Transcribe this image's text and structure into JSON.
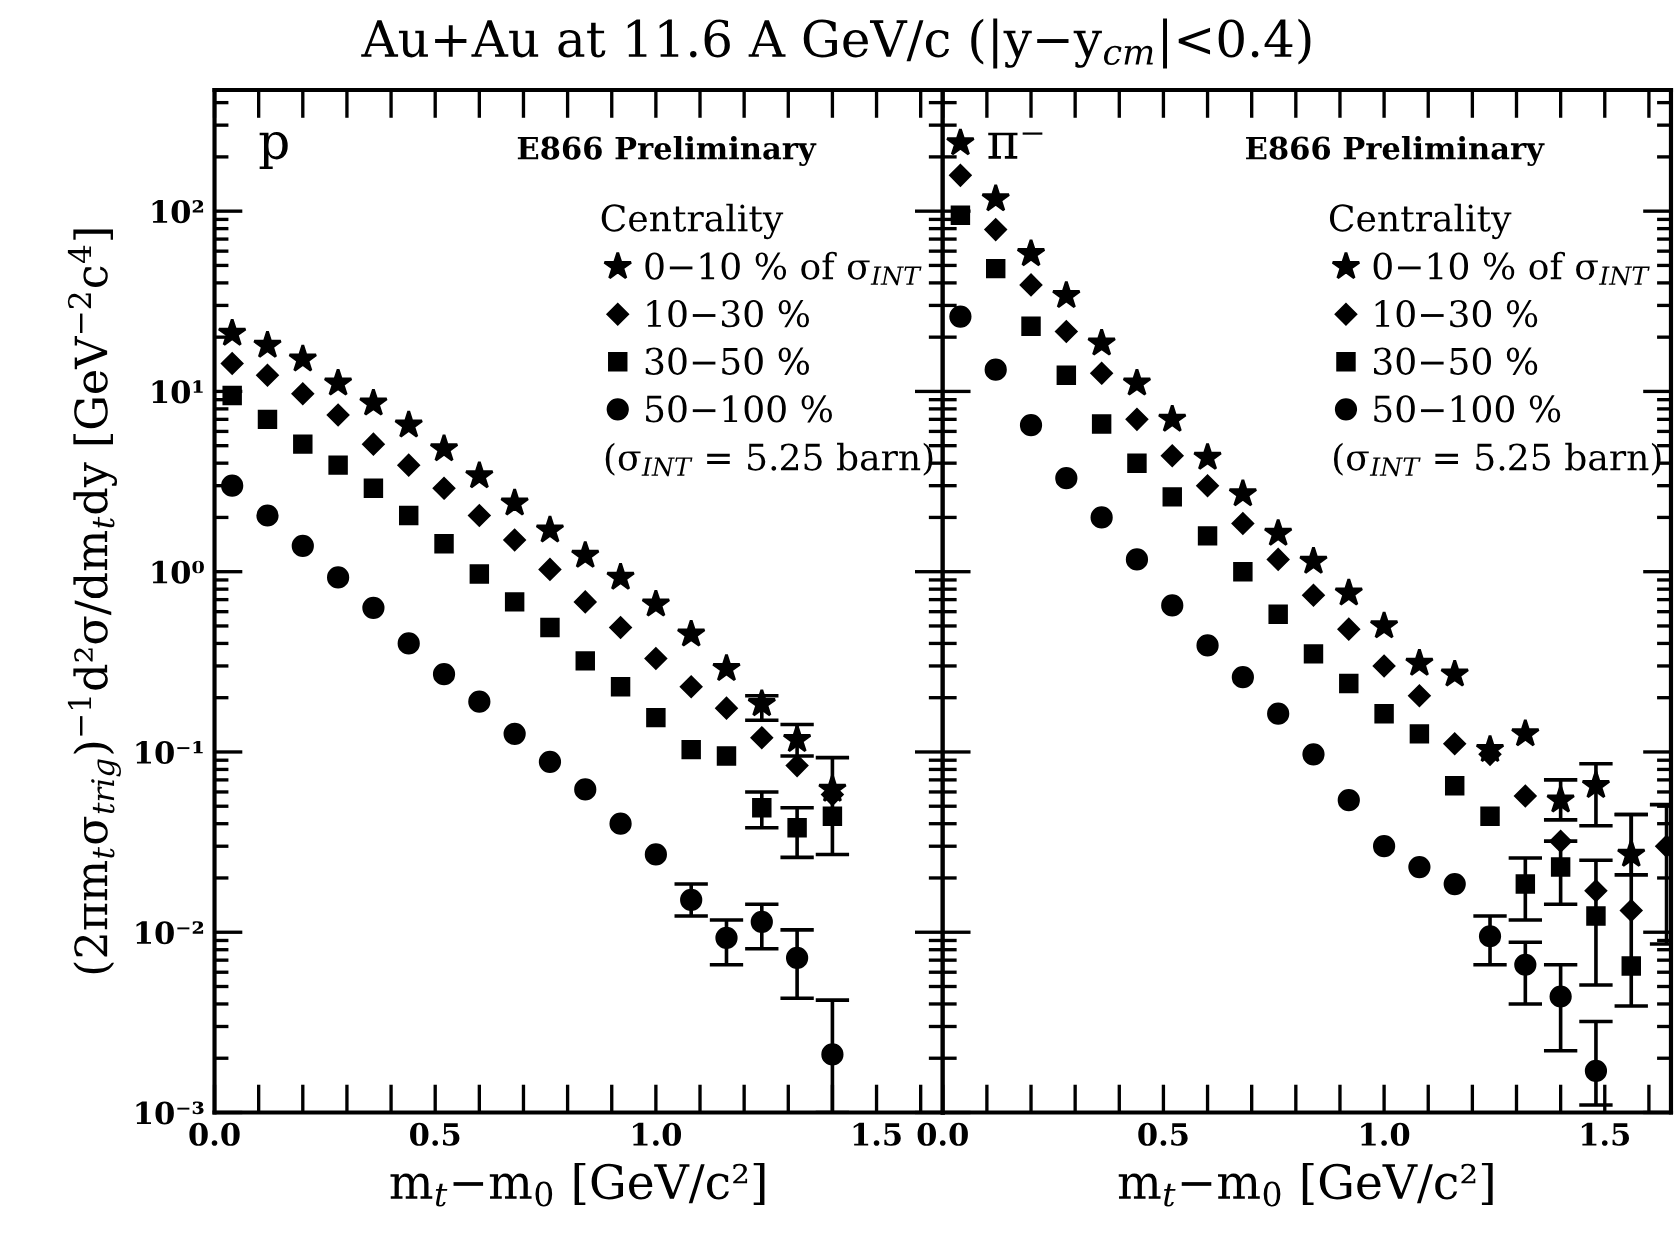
{
  "chart_data": [
    {
      "type": "scatter",
      "title": "Au+Au at 11.6 A GeV/c (|y−y$_{cm}$|<0.4)",
      "xlabel": "m$_{t}$−m$_{0}$ [GeV/c²]",
      "ylabel": "(2πm$_{t}$σ$_{trig}$)$^{−1}$d²σ/dm$_{t}$dy [GeV$^{−2}$c$^{4}$]",
      "legend_title": "Centrality",
      "legend": "top right",
      "log": "y",
      "annotations": [
        "p",
        "E866 Preliminary",
        "(σ$_{INT}$ = 5.25 barn)"
      ],
      "xlim": [
        0,
        1.65
      ],
      "xticks": [
        {
          "value": 0,
          "label": "0.0"
        },
        {
          "value": 0.1,
          "label": null
        },
        {
          "value": 0.2,
          "label": null
        },
        {
          "value": 0.3,
          "label": null
        },
        {
          "value": 0.4,
          "label": null
        },
        {
          "value": 0.5,
          "label": "0.5"
        },
        {
          "value": 0.6,
          "label": null
        },
        {
          "value": 0.7,
          "label": null
        },
        {
          "value": 0.8,
          "label": null
        },
        {
          "value": 0.9,
          "label": null
        },
        {
          "value": 1,
          "label": "1.0"
        },
        {
          "value": 1.1,
          "label": null
        },
        {
          "value": 1.2,
          "label": null
        },
        {
          "value": 1.3,
          "label": null
        },
        {
          "value": 1.4,
          "label": null
        },
        {
          "value": 1.5,
          "label": "1.5"
        },
        {
          "value": 1.6,
          "label": null
        }
      ],
      "ylim": [
        0.001,
        470
      ],
      "yticks": [
        {
          "value": 0.001,
          "label": "10⁻³"
        },
        {
          "value": 0.01,
          "label": "10⁻²"
        },
        {
          "value": 0.1,
          "label": "10⁻¹"
        },
        {
          "value": 1,
          "label": "10⁰"
        },
        {
          "value": 10,
          "label": "10¹"
        },
        {
          "value": 100,
          "label": "10²"
        }
      ],
      "series": [
        {
          "name": "0−10 % of σ$_{INT}$",
          "color": "#000000",
          "marker": "star",
          "x": [
            0.04,
            0.12,
            0.2,
            0.28,
            0.36,
            0.44,
            0.52,
            0.6,
            0.68,
            0.76,
            0.84,
            0.92,
            1.0,
            1.08,
            1.16,
            1.24,
            1.32,
            1.4
          ],
          "values": [
            21,
            18,
            15.1,
            11.1,
            8.6,
            6.5,
            4.8,
            3.4,
            2.4,
            1.7,
            1.23,
            0.93,
            0.66,
            0.45,
            0.29,
            0.185,
            0.117,
            0.062
          ],
          "errors": [
            null,
            null,
            null,
            null,
            null,
            null,
            null,
            null,
            null,
            null,
            null,
            null,
            null,
            null,
            null,
            [
              0.15,
              0.205
            ],
            [
              0.095,
              0.142
            ],
            null
          ]
        },
        {
          "name": "10−30 %",
          "color": "#000000",
          "marker": "diamond",
          "x": [
            0.04,
            0.12,
            0.2,
            0.28,
            0.36,
            0.44,
            0.52,
            0.6,
            0.68,
            0.76,
            0.84,
            0.92,
            1.0,
            1.08,
            1.16,
            1.24,
            1.32,
            1.4
          ],
          "values": [
            14.3,
            12.3,
            9.7,
            7.4,
            5.1,
            3.9,
            2.9,
            2.05,
            1.5,
            1.03,
            0.68,
            0.49,
            0.33,
            0.23,
            0.175,
            0.12,
            0.084,
            0.058
          ]
        },
        {
          "name": "30−50 %",
          "color": "#000000",
          "marker": "square",
          "x": [
            0.04,
            0.12,
            0.2,
            0.28,
            0.36,
            0.44,
            0.52,
            0.6,
            0.68,
            0.76,
            0.84,
            0.92,
            1.0,
            1.08,
            1.16,
            1.24,
            1.32,
            1.4
          ],
          "values": [
            9.5,
            7.0,
            5.1,
            3.9,
            2.9,
            2.05,
            1.43,
            0.97,
            0.68,
            0.49,
            0.32,
            0.23,
            0.155,
            0.103,
            0.095,
            0.049,
            0.038,
            0.044
          ],
          "errors": [
            null,
            null,
            null,
            null,
            null,
            null,
            null,
            null,
            null,
            null,
            null,
            null,
            null,
            null,
            null,
            [
              0.038,
              0.06
            ],
            [
              0.026,
              0.049
            ],
            [
              0.027,
              0.093
            ]
          ]
        },
        {
          "name": "50−100 %",
          "color": "#000000",
          "marker": "circle",
          "x": [
            0.04,
            0.12,
            0.2,
            0.28,
            0.36,
            0.44,
            0.52,
            0.6,
            0.68,
            0.76,
            0.84,
            0.92,
            1.0,
            1.08,
            1.16,
            1.24,
            1.32,
            1.4
          ],
          "values": [
            3.0,
            2.05,
            1.39,
            0.93,
            0.63,
            0.4,
            0.27,
            0.19,
            0.126,
            0.088,
            0.062,
            0.04,
            0.027,
            0.0151,
            0.0093,
            0.0114,
            0.0072,
            0.0021
          ],
          "errors": [
            null,
            null,
            null,
            null,
            null,
            null,
            null,
            null,
            null,
            null,
            null,
            null,
            null,
            [
              0.0123,
              0.0185
            ],
            [
              0.0066,
              0.0117
            ],
            [
              0.0081,
              0.0143
            ],
            [
              0.0043,
              0.0103
            ],
            [
              0.001,
              0.0042
            ]
          ]
        }
      ]
    },
    {
      "type": "scatter",
      "xlabel": "m$_{t}$−m$_{0}$ [GeV/c²]",
      "legend_title": "Centrality",
      "legend": "top right",
      "log": "y",
      "tick_labels": "x",
      "annotations": [
        "π⁻",
        "E866 Preliminary",
        "(σ$_{INT}$ = 5.25 barn)"
      ],
      "xlim": [
        0,
        1.65
      ],
      "xticks": [
        {
          "value": 0,
          "label": "0.0"
        },
        {
          "value": 0.1,
          "label": null
        },
        {
          "value": 0.2,
          "label": null
        },
        {
          "value": 0.3,
          "label": null
        },
        {
          "value": 0.4,
          "label": null
        },
        {
          "value": 0.5,
          "label": "0.5"
        },
        {
          "value": 0.6,
          "label": null
        },
        {
          "value": 0.7,
          "label": null
        },
        {
          "value": 0.8,
          "label": null
        },
        {
          "value": 0.9,
          "label": null
        },
        {
          "value": 1,
          "label": "1.0"
        },
        {
          "value": 1.1,
          "label": null
        },
        {
          "value": 1.2,
          "label": null
        },
        {
          "value": 1.3,
          "label": null
        },
        {
          "value": 1.4,
          "label": null
        },
        {
          "value": 1.5,
          "label": "1.5"
        },
        {
          "value": 1.6,
          "label": null
        }
      ],
      "ylim": [
        0.001,
        470
      ],
      "yticks": [
        {
          "value": 0.001,
          "label": null
        },
        {
          "value": 0.01,
          "label": null
        },
        {
          "value": 0.1,
          "label": null
        },
        {
          "value": 1,
          "label": null
        },
        {
          "value": 10,
          "label": null
        },
        {
          "value": 100,
          "label": null
        }
      ],
      "series": [
        {
          "name": "0−10 % of σ$_{INT}$",
          "color": "#000000",
          "marker": "star",
          "x": [
            0.04,
            0.12,
            0.2,
            0.28,
            0.36,
            0.44,
            0.52,
            0.6,
            0.68,
            0.76,
            0.84,
            0.92,
            1.0,
            1.08,
            1.16,
            1.24,
            1.32,
            1.4,
            1.48,
            1.56
          ],
          "values": [
            239,
            117,
            58,
            34,
            18.5,
            11.1,
            7.0,
            4.3,
            2.7,
            1.63,
            1.14,
            0.76,
            0.5,
            0.31,
            0.27,
            0.103,
            0.126,
            0.054,
            0.065,
            0.027
          ],
          "errors": [
            null,
            null,
            null,
            null,
            null,
            null,
            null,
            null,
            null,
            null,
            null,
            null,
            null,
            null,
            null,
            null,
            null,
            [
              0.042,
              0.07
            ],
            [
              0.039,
              0.086
            ],
            [
              0.0208,
              0.045
            ]
          ]
        },
        {
          "name": "10−30 %",
          "color": "#000000",
          "marker": "diamond",
          "x": [
            0.04,
            0.12,
            0.2,
            0.28,
            0.36,
            0.44,
            0.52,
            0.6,
            0.68,
            0.76,
            0.84,
            0.92,
            1.0,
            1.08,
            1.16,
            1.24,
            1.32,
            1.4,
            1.48,
            1.56,
            1.64
          ],
          "values": [
            158,
            79,
            39,
            21.5,
            12.6,
            7.0,
            4.4,
            3.0,
            1.85,
            1.17,
            0.74,
            0.48,
            0.3,
            0.205,
            0.111,
            0.097,
            0.057,
            0.032,
            0.017,
            0.0132,
            0.03
          ],
          "errors": [
            null,
            null,
            null,
            null,
            null,
            null,
            null,
            null,
            null,
            null,
            null,
            null,
            null,
            null,
            null,
            null,
            null,
            null,
            null,
            null,
            [
              0.0086,
              0.051
            ]
          ]
        },
        {
          "name": "30−50 %",
          "color": "#000000",
          "marker": "square",
          "x": [
            0.04,
            0.12,
            0.2,
            0.28,
            0.36,
            0.44,
            0.52,
            0.6,
            0.68,
            0.76,
            0.84,
            0.92,
            1.0,
            1.08,
            1.16,
            1.24,
            1.32,
            1.4,
            1.48,
            1.56
          ],
          "values": [
            95,
            48,
            23,
            12.3,
            6.6,
            4.0,
            2.6,
            1.58,
            1.0,
            0.58,
            0.35,
            0.24,
            0.163,
            0.126,
            0.065,
            0.044,
            0.0185,
            0.023,
            0.0123,
            0.0065
          ],
          "errors": [
            null,
            null,
            null,
            null,
            null,
            null,
            null,
            null,
            null,
            null,
            null,
            null,
            null,
            null,
            null,
            null,
            [
              0.0117,
              0.0258
            ],
            [
              0.0143,
              0.032
            ],
            [
              0.0051,
              0.0251
            ],
            [
              0.0039,
              0.045
            ]
          ]
        },
        {
          "name": "50−100 %",
          "color": "#000000",
          "marker": "circle",
          "x": [
            0.04,
            0.12,
            0.2,
            0.28,
            0.36,
            0.44,
            0.52,
            0.6,
            0.68,
            0.76,
            0.84,
            0.92,
            1.0,
            1.08,
            1.16,
            1.24,
            1.32,
            1.4,
            1.48
          ],
          "values": [
            26,
            13.2,
            6.5,
            3.3,
            2.0,
            1.17,
            0.65,
            0.39,
            0.26,
            0.163,
            0.097,
            0.054,
            0.03,
            0.023,
            0.0185,
            0.0095,
            0.0066,
            0.0044,
            0.0017
          ],
          "errors": [
            null,
            null,
            null,
            null,
            null,
            null,
            null,
            null,
            null,
            null,
            null,
            null,
            null,
            null,
            null,
            [
              0.0066,
              0.0123
            ],
            [
              0.004,
              0.0088
            ],
            [
              0.0022,
              0.0066
            ],
            [
              0.0011,
              0.0032
            ]
          ]
        }
      ]
    }
  ]
}
